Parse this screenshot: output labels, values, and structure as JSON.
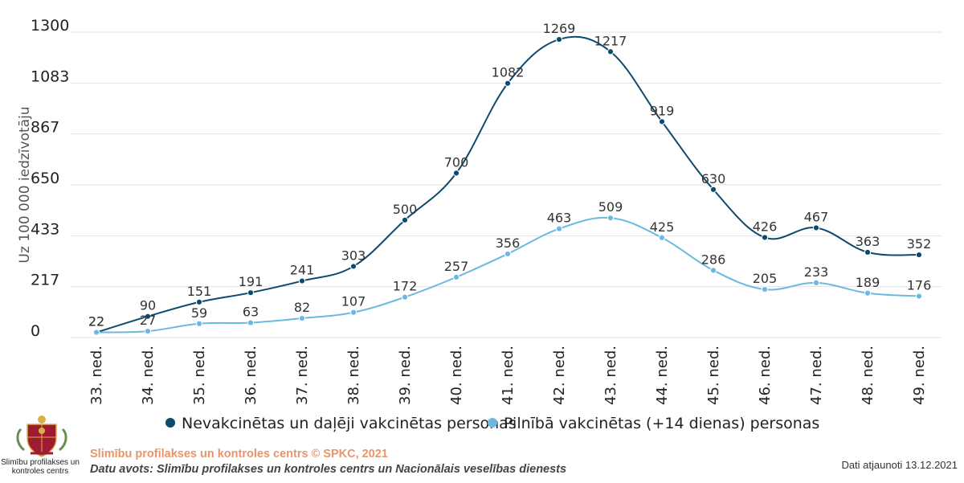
{
  "chart_data": {
    "type": "line",
    "title": "",
    "xlabel": "",
    "ylabel": "Uz 100 000 iedzīvotāju",
    "ylim": [
      0,
      1300
    ],
    "yticks": [
      0,
      217,
      433,
      650,
      867,
      1083,
      1300
    ],
    "grid": true,
    "legend_position": "bottom",
    "categories": [
      "33. ned.",
      "34. ned.",
      "35. ned.",
      "36. ned.",
      "37. ned.",
      "38. ned.",
      "39. ned.",
      "40. ned.",
      "41. ned.",
      "42. ned.",
      "43. ned.",
      "44. ned.",
      "45. ned.",
      "46. ned.",
      "47. ned.",
      "48. ned.",
      "49. ned."
    ],
    "series": [
      {
        "name": "Nevakcinētas un daļēji vakcinētas personas",
        "color": "#0d4a6e",
        "values": [
          22,
          90,
          151,
          191,
          241,
          303,
          500,
          700,
          1082,
          1269,
          1217,
          919,
          630,
          426,
          467,
          363,
          352
        ]
      },
      {
        "name": "Pilnībā vakcinētas (+14 dienas) personas",
        "color": "#6cb9e0",
        "values": [
          22,
          27,
          59,
          63,
          82,
          107,
          172,
          257,
          356,
          463,
          509,
          425,
          286,
          205,
          233,
          189,
          176
        ]
      }
    ]
  },
  "footer": {
    "credit": "Slimību profilakses un kontroles centrs © SPKC, 2021",
    "source": "Datu avots: Slimību profilakses un kontroles centrs un Nacionālais veselības dienests",
    "updated": "Dati atjaunoti 13.12.2021",
    "logo_text_line1": "Slimību profilakses un",
    "logo_text_line2": "kontroles centrs",
    "logo_icon": "latvia-coat-of-arms-icon"
  }
}
